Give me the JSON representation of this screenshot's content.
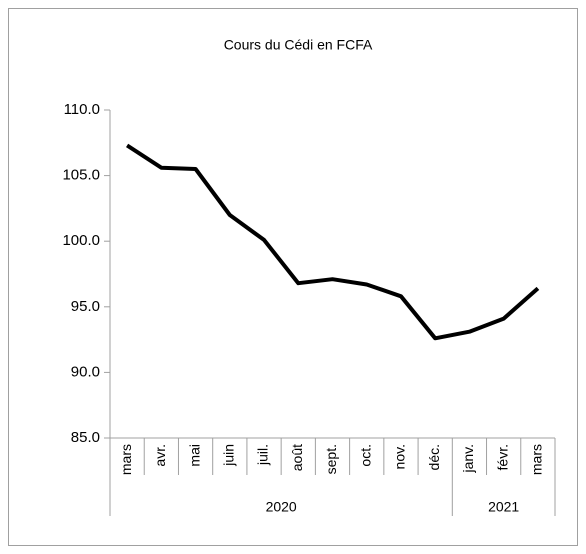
{
  "chart_data": {
    "type": "line",
    "title": "Cours du Cédi en FCFA",
    "category_groups": [
      {
        "label": "2020",
        "categories": [
          "mars",
          "avr.",
          "mai",
          "juin",
          "juil.",
          "août",
          "sept.",
          "oct.",
          "nov.",
          "déc."
        ]
      },
      {
        "label": "2021",
        "categories": [
          "janv.",
          "févr.",
          "mars"
        ]
      }
    ],
    "values": [
      107.3,
      105.6,
      105.5,
      102.0,
      100.1,
      96.8,
      97.1,
      96.7,
      95.8,
      92.6,
      93.1,
      94.1,
      96.4
    ],
    "color": "#000000",
    "ylim": [
      85,
      110
    ],
    "yticks": [
      {
        "value": 85,
        "label": "85.0"
      },
      {
        "value": 90,
        "label": "90.0"
      },
      {
        "value": 95,
        "label": "95.0"
      },
      {
        "value": 100,
        "label": "100.0"
      },
      {
        "value": 105,
        "label": "105.0"
      },
      {
        "value": 110,
        "label": "110.0"
      }
    ],
    "grid": false
  }
}
